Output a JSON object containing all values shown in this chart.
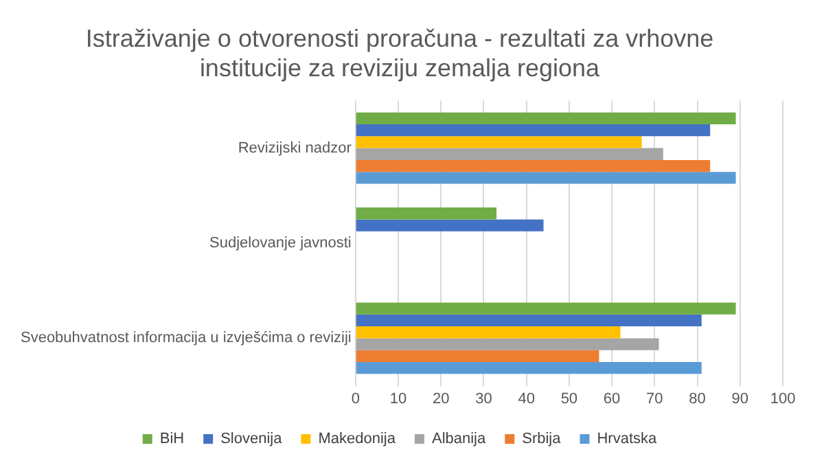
{
  "chart_data": {
    "type": "bar",
    "orientation": "horizontal",
    "title": "Istraživanje o otvorenosti proračuna - rezultati za vrhovne institucije za reviziju zemalja regiona",
    "categories": [
      "Revizijski nadzor",
      "Sudjelovanje javnosti",
      "Sveobuhvatnost informacija u izvješćima o reviziji"
    ],
    "series": [
      {
        "name": "BiH",
        "color": "#70ad47",
        "values": [
          89,
          33,
          89
        ]
      },
      {
        "name": "Slovenija",
        "color": "#4472c4",
        "values": [
          83,
          44,
          81
        ]
      },
      {
        "name": "Makedonija",
        "color": "#ffc000",
        "values": [
          67,
          null,
          62
        ]
      },
      {
        "name": "Albanija",
        "color": "#a5a5a5",
        "values": [
          72,
          null,
          71
        ]
      },
      {
        "name": "Srbija",
        "color": "#ed7d31",
        "values": [
          83,
          null,
          57
        ]
      },
      {
        "name": "Hrvatska",
        "color": "#5b9bd5",
        "values": [
          89,
          null,
          81
        ]
      }
    ],
    "xlim": [
      0,
      100
    ],
    "xticks": [
      0,
      10,
      20,
      30,
      40,
      50,
      60,
      70,
      80,
      90,
      100
    ],
    "grid": "x",
    "legend": "bottom"
  }
}
